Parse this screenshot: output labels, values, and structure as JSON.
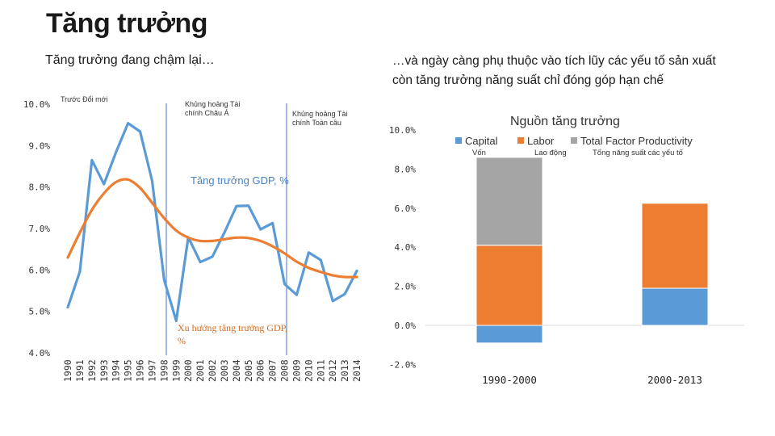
{
  "title": "Tăng trưởng",
  "subtitle_left": "Tăng trưởng đang chậm lại…",
  "subtitle_right": "…và ngày càng phụ thuộc vào tích lũy các yếu tố sản xuất còn tăng trưởng năng suất chỉ đóng góp hạn chế",
  "colors": {
    "gdp": "#5b9bd5",
    "trend": "#ed7d31",
    "capital": "#5b9bd5",
    "labor": "#ed7d31",
    "tfp": "#a5a5a5",
    "divider": "#4472c4"
  },
  "chart_data": [
    {
      "type": "line",
      "x": [
        1990,
        1991,
        1992,
        1993,
        1994,
        1995,
        1996,
        1997,
        1998,
        1999,
        2000,
        2001,
        2002,
        2003,
        2004,
        2005,
        2006,
        2007,
        2008,
        2009,
        2010,
        2011,
        2012,
        2013,
        2014
      ],
      "x_tick_labels": [
        "1990",
        "1991",
        "1992",
        "1993",
        "1994",
        "1995",
        "1996",
        "1997",
        "1998",
        "1999",
        "2000",
        "2001",
        "2002",
        "2003",
        "2004",
        "2005",
        "2006",
        "2007",
        "2008",
        "2009",
        "2010",
        "2011",
        "2012",
        "2013",
        "2014"
      ],
      "ylim": [
        4.0,
        10.0
      ],
      "y_tick_labels": [
        "10.0%",
        "9.0%",
        "8.0%",
        "7.0%",
        "6.0%",
        "5.0%",
        "4.0%"
      ],
      "series": [
        {
          "name": "Tăng trưởng GDP, %",
          "values": [
            5.1,
            5.96,
            8.65,
            8.07,
            8.84,
            9.54,
            9.34,
            8.15,
            5.76,
            4.77,
            6.79,
            6.19,
            6.32,
            6.9,
            7.54,
            7.55,
            6.98,
            7.13,
            5.66,
            5.4,
            6.42,
            6.24,
            5.25,
            5.42,
            5.98
          ]
        },
        {
          "name": "Xu hướng tăng trưởng GDP, %",
          "values": [
            6.3,
            6.9,
            7.45,
            7.85,
            8.12,
            8.18,
            7.98,
            7.62,
            7.25,
            6.95,
            6.78,
            6.7,
            6.7,
            6.74,
            6.78,
            6.77,
            6.7,
            6.57,
            6.4,
            6.2,
            6.05,
            5.95,
            5.87,
            5.83,
            5.83
          ]
        }
      ],
      "annotations": [
        "Trước Đổi mới",
        "Khủng hoảng Tài chính Châu Á",
        "Khủng hoảng Tài chính Toàn cầu"
      ],
      "series_labels": {
        "gdp": "Tăng trưởng GDP, %",
        "trend": "Xu hướng tăng trưởng GDP, %"
      }
    },
    {
      "type": "bar",
      "stacked": true,
      "title": "Nguồn tăng trưởng",
      "categories": [
        "1990-2000",
        "2000-2013"
      ],
      "ylim": [
        -2.0,
        10.0
      ],
      "y_tick_labels": [
        "10.0%",
        "8.0%",
        "6.0%",
        "4.0%",
        "2.0%",
        "0.0%",
        "-2.0%"
      ],
      "series": [
        {
          "name": "Capital",
          "sublabel": "Vốn",
          "values": [
            -0.9,
            1.9
          ]
        },
        {
          "name": "Labor",
          "sublabel": "Lao động",
          "values": [
            4.1,
            4.35
          ]
        },
        {
          "name": "Total Factor Productivity",
          "sublabel": "Tổng năng suất các yếu tố",
          "values": [
            4.5,
            0.0
          ]
        }
      ]
    }
  ]
}
